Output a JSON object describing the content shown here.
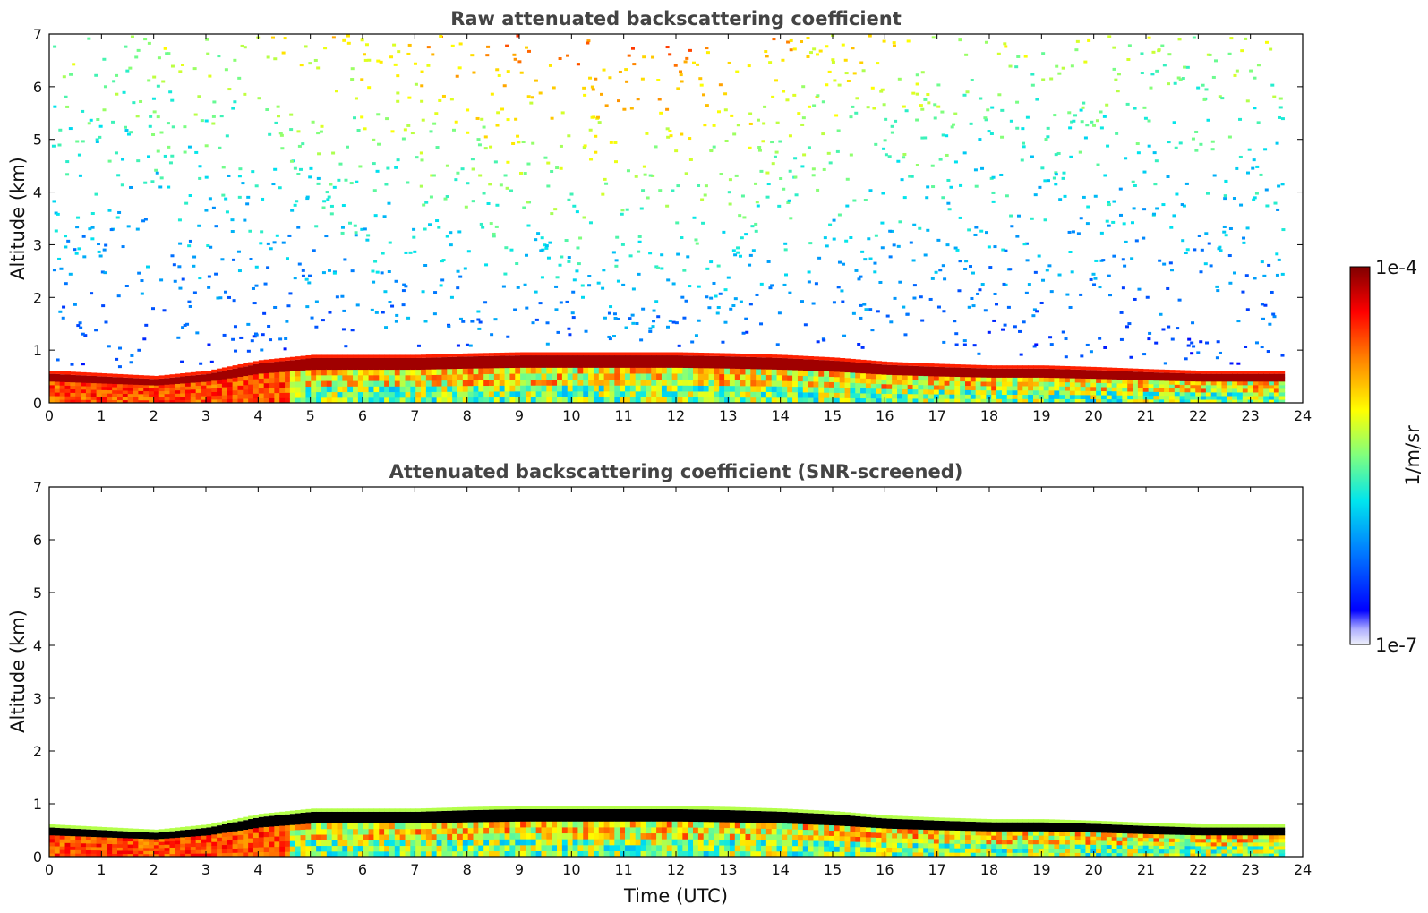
{
  "chart_data": [
    {
      "type": "heatmap",
      "title": "Raw attenuated backscattering coefficient",
      "xlabel": "",
      "ylabel": "Altitude (km)",
      "xlim": [
        0,
        24
      ],
      "ylim": [
        0,
        7
      ],
      "x_ticks": [
        "0",
        "1",
        "2",
        "3",
        "4",
        "5",
        "6",
        "7",
        "8",
        "9",
        "10",
        "11",
        "12",
        "13",
        "14",
        "15",
        "16",
        "17",
        "18",
        "19",
        "20",
        "21",
        "22",
        "23",
        "24"
      ],
      "y_ticks": [
        "0",
        "1",
        "2",
        "3",
        "4",
        "5",
        "6",
        "7"
      ],
      "data_end_hour": 23.65,
      "boundary_layer_top_km": [
        {
          "t": 0,
          "h": 0.55
        },
        {
          "t": 1,
          "h": 0.5
        },
        {
          "t": 2,
          "h": 0.45
        },
        {
          "t": 3,
          "h": 0.55
        },
        {
          "t": 4,
          "h": 0.75
        },
        {
          "t": 5,
          "h": 0.85
        },
        {
          "t": 6,
          "h": 0.85
        },
        {
          "t": 7,
          "h": 0.85
        },
        {
          "t": 8,
          "h": 0.88
        },
        {
          "t": 9,
          "h": 0.9
        },
        {
          "t": 10,
          "h": 0.9
        },
        {
          "t": 11,
          "h": 0.9
        },
        {
          "t": 12,
          "h": 0.9
        },
        {
          "t": 13,
          "h": 0.88
        },
        {
          "t": 14,
          "h": 0.85
        },
        {
          "t": 15,
          "h": 0.8
        },
        {
          "t": 16,
          "h": 0.72
        },
        {
          "t": 17,
          "h": 0.68
        },
        {
          "t": 18,
          "h": 0.65
        },
        {
          "t": 19,
          "h": 0.65
        },
        {
          "t": 20,
          "h": 0.62
        },
        {
          "t": 21,
          "h": 0.58
        },
        {
          "t": 22,
          "h": 0.55
        },
        {
          "t": 23,
          "h": 0.55
        },
        {
          "t": 23.65,
          "h": 0.55
        }
      ],
      "noise_above_boundary_layer": true
    },
    {
      "type": "heatmap",
      "title": "Attenuated backscattering coefficient (SNR-screened)",
      "xlabel": "Time (UTC)",
      "ylabel": "Altitude (km)",
      "xlim": [
        0,
        24
      ],
      "ylim": [
        0,
        7
      ],
      "x_ticks": [
        "0",
        "1",
        "2",
        "3",
        "4",
        "5",
        "6",
        "7",
        "8",
        "9",
        "10",
        "11",
        "12",
        "13",
        "14",
        "15",
        "16",
        "17",
        "18",
        "19",
        "20",
        "21",
        "22",
        "23",
        "24"
      ],
      "y_ticks": [
        "0",
        "1",
        "2",
        "3",
        "4",
        "5",
        "6",
        "7"
      ],
      "data_end_hour": 23.65,
      "boundary_layer_top_km": [
        {
          "t": 0,
          "h": 0.55
        },
        {
          "t": 1,
          "h": 0.5
        },
        {
          "t": 2,
          "h": 0.45
        },
        {
          "t": 3,
          "h": 0.55
        },
        {
          "t": 4,
          "h": 0.75
        },
        {
          "t": 5,
          "h": 0.85
        },
        {
          "t": 6,
          "h": 0.85
        },
        {
          "t": 7,
          "h": 0.85
        },
        {
          "t": 8,
          "h": 0.88
        },
        {
          "t": 9,
          "h": 0.9
        },
        {
          "t": 10,
          "h": 0.9
        },
        {
          "t": 11,
          "h": 0.9
        },
        {
          "t": 12,
          "h": 0.9
        },
        {
          "t": 13,
          "h": 0.88
        },
        {
          "t": 14,
          "h": 0.85
        },
        {
          "t": 15,
          "h": 0.8
        },
        {
          "t": 16,
          "h": 0.72
        },
        {
          "t": 17,
          "h": 0.68
        },
        {
          "t": 18,
          "h": 0.65
        },
        {
          "t": 19,
          "h": 0.65
        },
        {
          "t": 20,
          "h": 0.62
        },
        {
          "t": 21,
          "h": 0.58
        },
        {
          "t": 22,
          "h": 0.55
        },
        {
          "t": 23,
          "h": 0.55
        },
        {
          "t": 23.65,
          "h": 0.55
        }
      ],
      "noise_above_boundary_layer": false,
      "cloud_layer_color": "#000000"
    }
  ],
  "colorbar": {
    "label": "1/m/sr",
    "max_label": "1e-4",
    "min_label": "1e-7",
    "colormap": "jet",
    "scale": "log",
    "range": [
      1e-07,
      0.0001
    ]
  }
}
